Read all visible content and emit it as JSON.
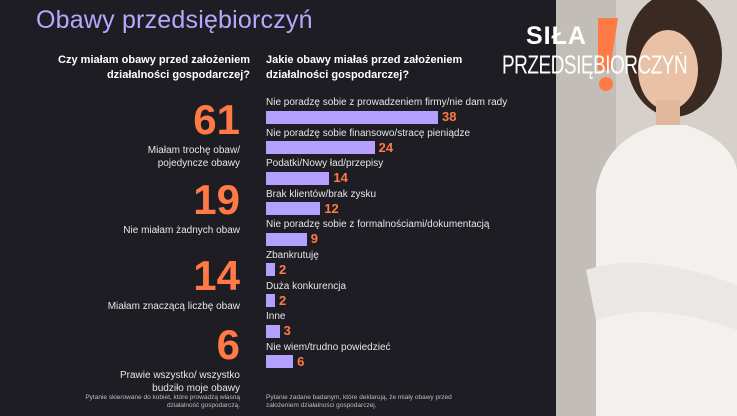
{
  "title": "Obawy przedsiębiorczyń",
  "left_question": "Czy miałam obawy przed założeniem działalności gospodarczej?",
  "right_question": "Jakie obawy miałaś przed założeniem działalności gospodarczej?",
  "stats": [
    {
      "value": "61",
      "label": "Miałam trochę obaw/ pojedyncze obawy"
    },
    {
      "value": "19",
      "label": "Nie miałam żadnych obaw"
    },
    {
      "value": "14",
      "label": "Miałam znaczącą liczbę obaw"
    },
    {
      "value": "6",
      "label": "Prawie wszystko/ wszystko budziło moje obawy"
    }
  ],
  "footnote_left": "Pytanie skierowane do kobiet, które prowadzą własną działalność gospodarczą.",
  "footnote_right": "Pytanie zadane badanym, które deklarują, że miały obawy przed założeniem działalności gospodarczej.",
  "logo": {
    "line1": "SIŁA",
    "line2": "PRZEDSIĘBIORCZYŃ"
  },
  "colors": {
    "accent": "#ff7a45",
    "bar": "#b3a0ff",
    "title": "#b9a6ff",
    "background": "#1f1d24"
  },
  "chart_data": {
    "type": "bar",
    "orientation": "horizontal",
    "categories": [
      "Nie poradzę sobie z prowadzeniem firmy/nie dam rady",
      "Nie poradzę sobie finansowo/stracę pieniądze",
      "Podatki/Nowy ład/przepisy",
      "Brak klientów/brak zysku",
      "Nie poradzę sobie z formalnościami/dokumentacją",
      "Zbankrutuję",
      "Duża konkurencja",
      "Inne",
      "Nie wiem/trudno powiedzieć"
    ],
    "values": [
      38,
      24,
      14,
      12,
      9,
      2,
      2,
      3,
      6
    ],
    "max": 38
  }
}
